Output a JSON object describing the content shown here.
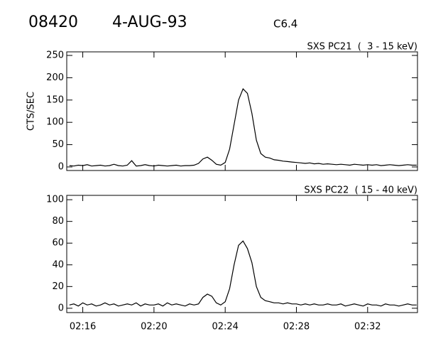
{
  "header": {
    "event": "08420",
    "date": "4-AUG-93",
    "class": "C6.4"
  },
  "chart_data": [
    {
      "type": "line",
      "title": "SXS PC21  (  3 - 15 keV)",
      "ylabel": "CTS/SEC",
      "color": "#000000",
      "x": [
        135.25,
        135.5,
        135.75,
        136,
        136.25,
        136.5,
        136.75,
        137,
        137.25,
        137.5,
        137.75,
        138,
        138.25,
        138.5,
        138.75,
        139,
        139.25,
        139.5,
        139.75,
        140,
        140.25,
        140.5,
        140.75,
        141,
        141.25,
        141.5,
        141.75,
        142,
        142.25,
        142.5,
        142.75,
        143,
        143.25,
        143.5,
        143.75,
        144,
        144.25,
        144.5,
        144.75,
        145,
        145.25,
        145.5,
        145.75,
        146,
        146.25,
        146.5,
        146.75,
        147,
        147.25,
        147.5,
        147.75,
        148,
        148.25,
        148.5,
        148.75,
        149,
        149.25,
        149.5,
        149.75,
        150,
        150.25,
        150.5,
        150.75,
        151,
        151.25,
        151.5,
        151.75,
        152,
        152.25,
        152.5,
        152.75,
        153,
        153.25,
        153.5,
        153.75,
        154,
        154.25,
        154.5,
        154.75
      ],
      "values": [
        3,
        2,
        4,
        3,
        5,
        2,
        3,
        4,
        2,
        3,
        6,
        3,
        2,
        4,
        14,
        2,
        3,
        5,
        3,
        2,
        4,
        3,
        2,
        3,
        4,
        2,
        3,
        3,
        4,
        8,
        18,
        22,
        15,
        6,
        4,
        10,
        40,
        95,
        150,
        175,
        165,
        120,
        60,
        30,
        22,
        20,
        16,
        15,
        13,
        12,
        11,
        10,
        9,
        8,
        9,
        7,
        8,
        6,
        7,
        6,
        5,
        6,
        5,
        4,
        6,
        5,
        4,
        5,
        4,
        5,
        3,
        4,
        5,
        4,
        3,
        4,
        5,
        4,
        4
      ],
      "xlim": [
        135.1,
        154.8
      ],
      "xticks": [
        136,
        140,
        144,
        148,
        152
      ],
      "ylim": [
        -8,
        258
      ],
      "yticks": [
        0,
        50,
        100,
        150,
        200,
        250
      ]
    },
    {
      "type": "line",
      "title": "SXS PC22  ( 15 - 40 keV)",
      "color": "#000000",
      "x": [
        135.25,
        135.5,
        135.75,
        136,
        136.25,
        136.5,
        136.75,
        137,
        137.25,
        137.5,
        137.75,
        138,
        138.25,
        138.5,
        138.75,
        139,
        139.25,
        139.5,
        139.75,
        140,
        140.25,
        140.5,
        140.75,
        141,
        141.25,
        141.5,
        141.75,
        142,
        142.25,
        142.5,
        142.75,
        143,
        143.25,
        143.5,
        143.75,
        144,
        144.25,
        144.5,
        144.75,
        145,
        145.25,
        145.5,
        145.75,
        146,
        146.25,
        146.5,
        146.75,
        147,
        147.25,
        147.5,
        147.75,
        148,
        148.25,
        148.5,
        148.75,
        149,
        149.25,
        149.5,
        149.75,
        150,
        150.25,
        150.5,
        150.75,
        151,
        151.25,
        151.5,
        151.75,
        152,
        152.25,
        152.5,
        152.75,
        153,
        153.25,
        153.5,
        153.75,
        154,
        154.25,
        154.5,
        154.75
      ],
      "values": [
        3,
        4,
        2,
        5,
        3,
        4,
        2,
        3,
        5,
        3,
        4,
        2,
        3,
        4,
        3,
        5,
        2,
        4,
        3,
        3,
        4,
        2,
        5,
        3,
        4,
        3,
        2,
        4,
        3,
        4,
        10,
        13,
        11,
        5,
        3,
        6,
        18,
        40,
        58,
        62,
        55,
        42,
        20,
        10,
        7,
        6,
        5,
        5,
        4,
        5,
        4,
        4,
        3,
        4,
        3,
        4,
        3,
        3,
        4,
        3,
        3,
        4,
        2,
        3,
        4,
        3,
        2,
        4,
        3,
        3,
        2,
        4,
        3,
        3,
        2,
        3,
        4,
        3,
        3
      ],
      "xlim": [
        135.1,
        154.8
      ],
      "xticks": [
        {
          "value": 136,
          "label": "02:16"
        },
        {
          "value": 140,
          "label": "02:20"
        },
        {
          "value": 144,
          "label": "02:24"
        },
        {
          "value": 148,
          "label": "02:28"
        },
        {
          "value": 152,
          "label": "02:32"
        }
      ],
      "ylim": [
        -4,
        104
      ],
      "yticks": [
        0,
        20,
        40,
        60,
        80,
        100
      ]
    }
  ]
}
